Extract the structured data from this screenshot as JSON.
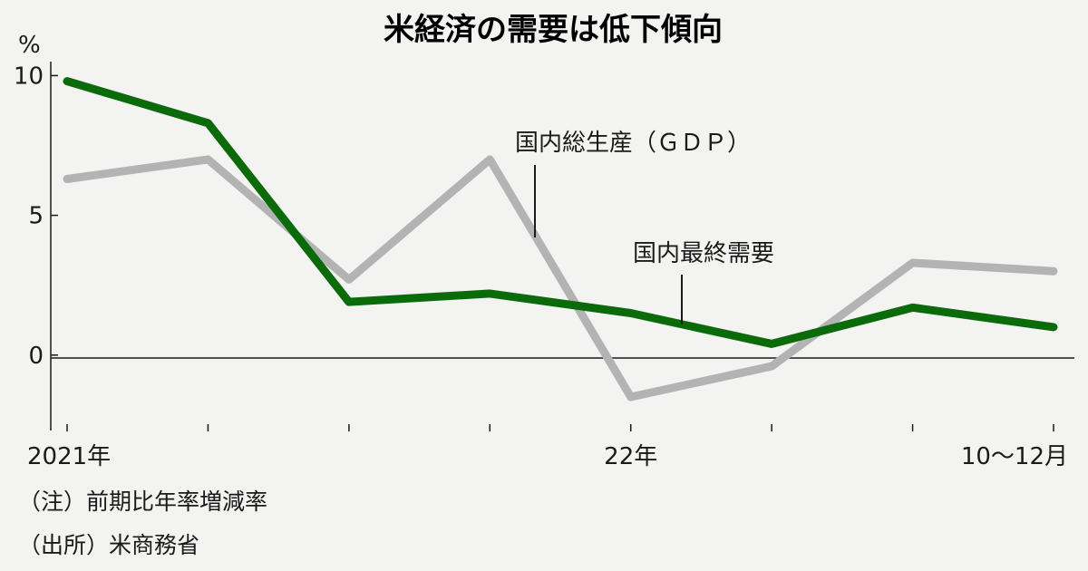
{
  "chart_data": {
    "type": "line",
    "title": "米経済の需要は低下傾向",
    "ylabel": "%",
    "ylim": [
      -2.7,
      10.5
    ],
    "yticks": [
      0,
      5,
      10
    ],
    "x": [
      0,
      1,
      2,
      3,
      4,
      5,
      6,
      7
    ],
    "x_tick_labels": [
      "2021年",
      "",
      "",
      "",
      "22年",
      "",
      "",
      "10～12月"
    ],
    "grid": false,
    "series": [
      {
        "name": "国内総生産（ＧＤＰ）",
        "color": "#b3b3b3",
        "values": [
          6.3,
          7.0,
          2.7,
          7.0,
          -1.5,
          -0.4,
          3.3,
          3.0
        ]
      },
      {
        "name": "国内最終需要",
        "color": "#0b6b0b",
        "values": [
          9.8,
          8.3,
          1.9,
          2.2,
          1.5,
          0.4,
          1.7,
          1.0
        ]
      }
    ],
    "notes": [
      "（注）前期比年率増減率",
      "（出所）米商務省"
    ]
  }
}
